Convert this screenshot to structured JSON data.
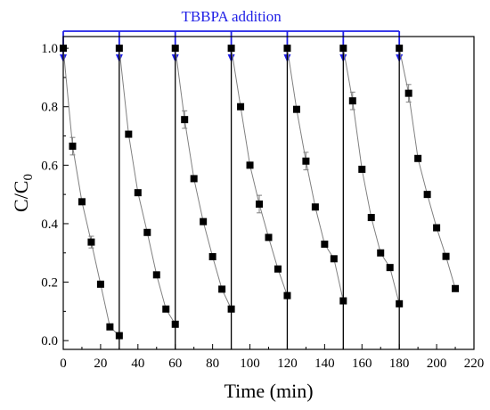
{
  "chart_data": {
    "type": "scatter",
    "title": "",
    "xlabel": "Time (min)",
    "ylabel_main": "C/C",
    "ylabel_sub": "0",
    "xlim": [
      0,
      220
    ],
    "ylim": [
      -0.03,
      1.04
    ],
    "xticks": [
      0,
      20,
      40,
      60,
      80,
      100,
      120,
      140,
      160,
      180,
      200,
      220
    ],
    "yticks": [
      0.0,
      0.2,
      0.4,
      0.6,
      0.8,
      1.0
    ],
    "ytick_labels": [
      "0.0",
      "0.2",
      "0.4",
      "0.6",
      "0.8",
      "1.0"
    ],
    "grid": false,
    "annotation": {
      "text": "TBBPA addition",
      "arrow_times": [
        0,
        30,
        60,
        90,
        120,
        150,
        180
      ],
      "color": "#1f1fe6"
    },
    "cycle_boundaries": [
      30,
      60,
      90,
      120,
      150,
      180
    ],
    "series": [
      {
        "x": [
          0,
          5,
          10,
          15,
          20,
          25,
          30
        ],
        "y": [
          1.0,
          0.665,
          0.475,
          0.337,
          0.193,
          0.047,
          0.017
        ],
        "err": [
          0,
          0.03,
          0,
          0.02,
          0,
          0,
          0
        ]
      },
      {
        "x": [
          30,
          35,
          40,
          45,
          50,
          55,
          60
        ],
        "y": [
          1.0,
          0.706,
          0.506,
          0.37,
          0.225,
          0.108,
          0.056
        ],
        "err": [
          0,
          0,
          0,
          0,
          0,
          0,
          0
        ]
      },
      {
        "x": [
          60,
          65,
          70,
          75,
          80,
          85,
          90
        ],
        "y": [
          1.0,
          0.756,
          0.554,
          0.407,
          0.287,
          0.176,
          0.108
        ],
        "err": [
          0,
          0.03,
          0,
          0,
          0,
          0,
          0
        ]
      },
      {
        "x": [
          90,
          95,
          100,
          105,
          110,
          115,
          120
        ],
        "y": [
          1.0,
          0.8,
          0.6,
          0.467,
          0.353,
          0.245,
          0.154
        ],
        "err": [
          0,
          0,
          0,
          0.03,
          0,
          0,
          0
        ]
      },
      {
        "x": [
          120,
          125,
          130,
          135,
          140,
          145,
          150
        ],
        "y": [
          1.0,
          0.791,
          0.614,
          0.457,
          0.33,
          0.28,
          0.136
        ],
        "err": [
          0,
          0,
          0.03,
          0,
          0,
          0,
          0
        ]
      },
      {
        "x": [
          150,
          155,
          160,
          165,
          170,
          175,
          180
        ],
        "y": [
          1.0,
          0.82,
          0.586,
          0.421,
          0.3,
          0.25,
          0.126
        ],
        "err": [
          0,
          0.03,
          0,
          0,
          0,
          0,
          0
        ]
      },
      {
        "x": [
          180,
          185,
          190,
          195,
          200,
          205,
          210
        ],
        "y": [
          1.0,
          0.846,
          0.623,
          0.5,
          0.386,
          0.288,
          0.178
        ],
        "err": [
          0,
          0.03,
          0,
          0,
          0,
          0,
          0
        ]
      }
    ]
  }
}
